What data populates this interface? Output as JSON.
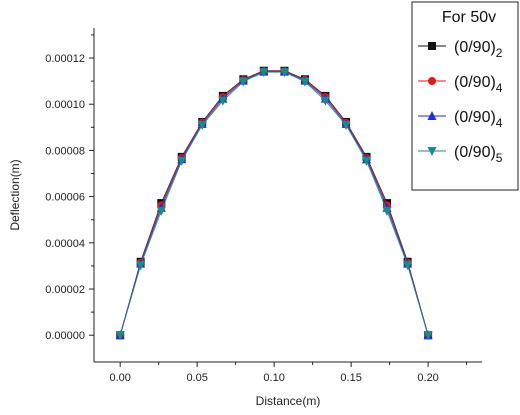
{
  "chart_data": {
    "type": "line",
    "xlabel": "Distance(m)",
    "ylabel": "Deflection(m)",
    "xlim": [
      -0.017,
      0.235
    ],
    "ylim": [
      -1.16e-05,
      0.000133
    ],
    "xticks": [
      0.0,
      0.05,
      0.1,
      0.15,
      0.2
    ],
    "xtick_labels": [
      "0.00",
      "0.05",
      "0.10",
      "0.15",
      "0.20"
    ],
    "yticks": [
      0.0,
      2e-05,
      4e-05,
      6e-05,
      8e-05,
      0.0001,
      0.00012
    ],
    "ytick_labels": [
      "0.00000",
      "0.00002",
      "0.00004",
      "0.00006",
      "0.00008",
      "0.00010",
      "0.00012"
    ],
    "grid": false,
    "legend": {
      "title": "For 50v",
      "placement": "top-right"
    },
    "x": [
      0.0,
      0.0133,
      0.0267,
      0.04,
      0.0533,
      0.0667,
      0.08,
      0.0933,
      0.1067,
      0.12,
      0.1333,
      0.1467,
      0.16,
      0.1733,
      0.1867,
      0.2
    ],
    "series": [
      {
        "name": "(0/90)",
        "subscript": "2",
        "marker": "square",
        "color": "#111111",
        "values": [
          0.0,
          3.18e-05,
          5.72e-05,
          7.72e-05,
          9.23e-05,
          0.0001036,
          0.0001108,
          0.0001145,
          0.0001145,
          0.0001108,
          0.0001036,
          9.23e-05,
          7.72e-05,
          5.72e-05,
          3.18e-05,
          0.0
        ]
      },
      {
        "name": "(0/90)",
        "subscript": "4",
        "marker": "circle",
        "color": "#e31a1c",
        "values": [
          0.0,
          3.14e-05,
          5.62e-05,
          7.67e-05,
          9.2e-05,
          0.0001031,
          0.0001105,
          0.0001143,
          0.0001143,
          0.0001105,
          0.0001031,
          9.2e-05,
          7.67e-05,
          5.62e-05,
          3.14e-05,
          0.0
        ]
      },
      {
        "name": "(0/90)",
        "subscript": "4",
        "marker": "triangle-up",
        "color": "#1f2fd6",
        "values": [
          0.0,
          3.1e-05,
          5.52e-05,
          7.62e-05,
          9.15e-05,
          0.0001024,
          0.0001102,
          0.0001141,
          0.0001141,
          0.0001102,
          0.0001024,
          9.15e-05,
          7.62e-05,
          5.52e-05,
          3.1e-05,
          0.0
        ]
      },
      {
        "name": "(0/90)",
        "subscript": "5",
        "marker": "triangle-down",
        "color": "#1a8a8a",
        "values": [
          0.0,
          3.03e-05,
          5.38e-05,
          7.55e-05,
          9.1e-05,
          0.0001015,
          0.0001098,
          0.0001139,
          0.0001139,
          0.0001098,
          0.0001015,
          9.1e-05,
          7.55e-05,
          5.38e-05,
          3.03e-05,
          0.0
        ]
      }
    ]
  }
}
